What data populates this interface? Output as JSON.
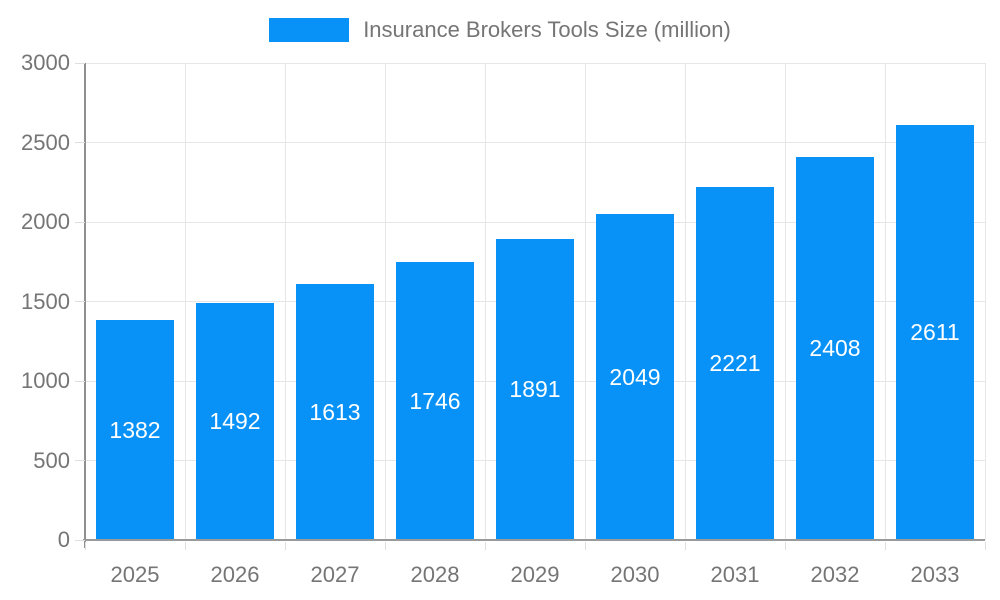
{
  "chart_data": {
    "type": "bar",
    "title": "Insurance Brokers Tools Size (million)",
    "categories": [
      "2025",
      "2026",
      "2027",
      "2028",
      "2029",
      "2030",
      "2031",
      "2032",
      "2033"
    ],
    "values": [
      1382,
      1492,
      1613,
      1746,
      1891,
      2049,
      2221,
      2408,
      2611
    ],
    "xlabel": "",
    "ylabel": "",
    "ylim": [
      0,
      3000
    ],
    "yticks": [
      0,
      500,
      1000,
      1500,
      2000,
      2500,
      3000
    ],
    "grid": true,
    "legend_position": "top",
    "bar_color": "#0892f8",
    "value_label_color": "#ffffff",
    "axis_text_color": "#757575",
    "gridline_color": "#e6e6e6"
  }
}
